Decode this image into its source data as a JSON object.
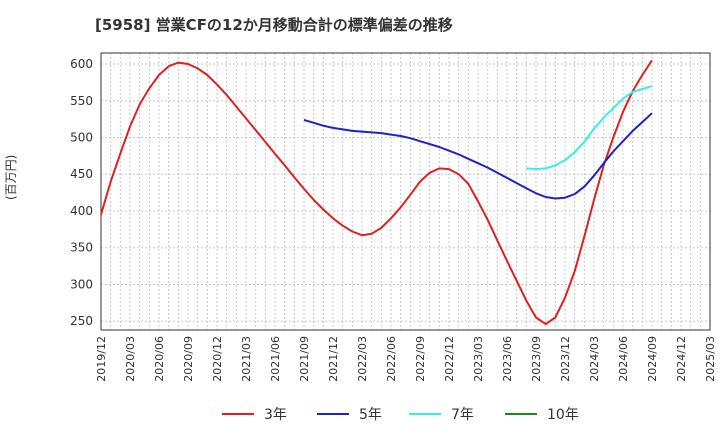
{
  "chart_data": {
    "type": "line",
    "title": "[5958]  営業CFの12か月移動合計の標準偏差の推移",
    "ylabel": "(百万円)",
    "xlabel": "",
    "ylim": [
      238,
      615
    ],
    "yticks": [
      250,
      300,
      350,
      400,
      450,
      500,
      550,
      600
    ],
    "x_ticks": [
      "2019/12",
      "2020/03",
      "2020/06",
      "2020/09",
      "2020/12",
      "2021/03",
      "2021/06",
      "2021/09",
      "2021/12",
      "2022/03",
      "2022/06",
      "2022/09",
      "2022/12",
      "2023/03",
      "2023/06",
      "2023/09",
      "2023/12",
      "2024/03",
      "2024/06",
      "2024/09",
      "2024/12",
      "2025/03"
    ],
    "grid": true,
    "legend_position": "bottom",
    "series": [
      {
        "name": "3年",
        "color": "#e02020",
        "x": [
          "2019/12",
          "2020/01",
          "2020/02",
          "2020/03",
          "2020/04",
          "2020/05",
          "2020/06",
          "2020/07",
          "2020/08",
          "2020/09",
          "2020/10",
          "2020/11",
          "2020/12",
          "2021/01",
          "2021/02",
          "2021/03",
          "2021/04",
          "2021/05",
          "2021/06",
          "2021/07",
          "2021/08",
          "2021/09",
          "2021/10",
          "2021/11",
          "2021/12",
          "2022/01",
          "2022/02",
          "2022/03",
          "2022/04",
          "2022/05",
          "2022/06",
          "2022/07",
          "2022/08",
          "2022/09",
          "2022/10",
          "2022/11",
          "2022/12",
          "2023/01",
          "2023/02",
          "2023/03",
          "2023/04",
          "2023/05",
          "2023/06",
          "2023/07",
          "2023/08",
          "2023/09",
          "2023/10",
          "2023/11",
          "2023/12",
          "2024/01",
          "2024/02",
          "2024/03",
          "2024/04",
          "2024/05",
          "2024/06",
          "2024/07",
          "2024/08",
          "2024/09"
        ],
        "values": [
          395,
          440,
          478,
          515,
          545,
          567,
          585,
          597,
          602,
          600,
          594,
          585,
          572,
          558,
          542,
          526,
          510,
          494,
          478,
          462,
          446,
          430,
          415,
          402,
          390,
          380,
          372,
          367,
          369,
          377,
          390,
          405,
          422,
          440,
          452,
          458,
          457,
          450,
          437,
          413,
          388,
          360,
          332,
          305,
          278,
          255,
          246,
          255,
          282,
          318,
          365,
          415,
          462,
          500,
          535,
          563,
          585,
          605
        ]
      },
      {
        "name": "5年",
        "color": "#1a24c8",
        "x": [
          "2021/09",
          "2021/10",
          "2021/11",
          "2021/12",
          "2022/01",
          "2022/02",
          "2022/03",
          "2022/04",
          "2022/05",
          "2022/06",
          "2022/07",
          "2022/08",
          "2022/09",
          "2022/10",
          "2022/11",
          "2022/12",
          "2023/01",
          "2023/02",
          "2023/03",
          "2023/04",
          "2023/05",
          "2023/06",
          "2023/07",
          "2023/08",
          "2023/09",
          "2023/10",
          "2023/11",
          "2023/12",
          "2024/01",
          "2024/02",
          "2024/03",
          "2024/04",
          "2024/05",
          "2024/06",
          "2024/07",
          "2024/08",
          "2024/09"
        ],
        "values": [
          524,
          520,
          516,
          513,
          511,
          509,
          508,
          507,
          506,
          504,
          502,
          499,
          495,
          491,
          487,
          482,
          477,
          471,
          465,
          459,
          452,
          445,
          438,
          431,
          424,
          419,
          417,
          418,
          423,
          433,
          448,
          465,
          481,
          495,
          509,
          521,
          533
        ]
      },
      {
        "name": "7年",
        "color": "#33eeee",
        "x": [
          "2023/08",
          "2023/09",
          "2023/10",
          "2023/11",
          "2023/12",
          "2024/01",
          "2024/02",
          "2024/03",
          "2024/04",
          "2024/05",
          "2024/06",
          "2024/07",
          "2024/08",
          "2024/09"
        ],
        "values": [
          458,
          457,
          458,
          462,
          469,
          480,
          494,
          512,
          527,
          540,
          553,
          562,
          566,
          570
        ]
      },
      {
        "name": "10年",
        "color": "#1a8a1a",
        "x": [],
        "values": []
      }
    ]
  }
}
